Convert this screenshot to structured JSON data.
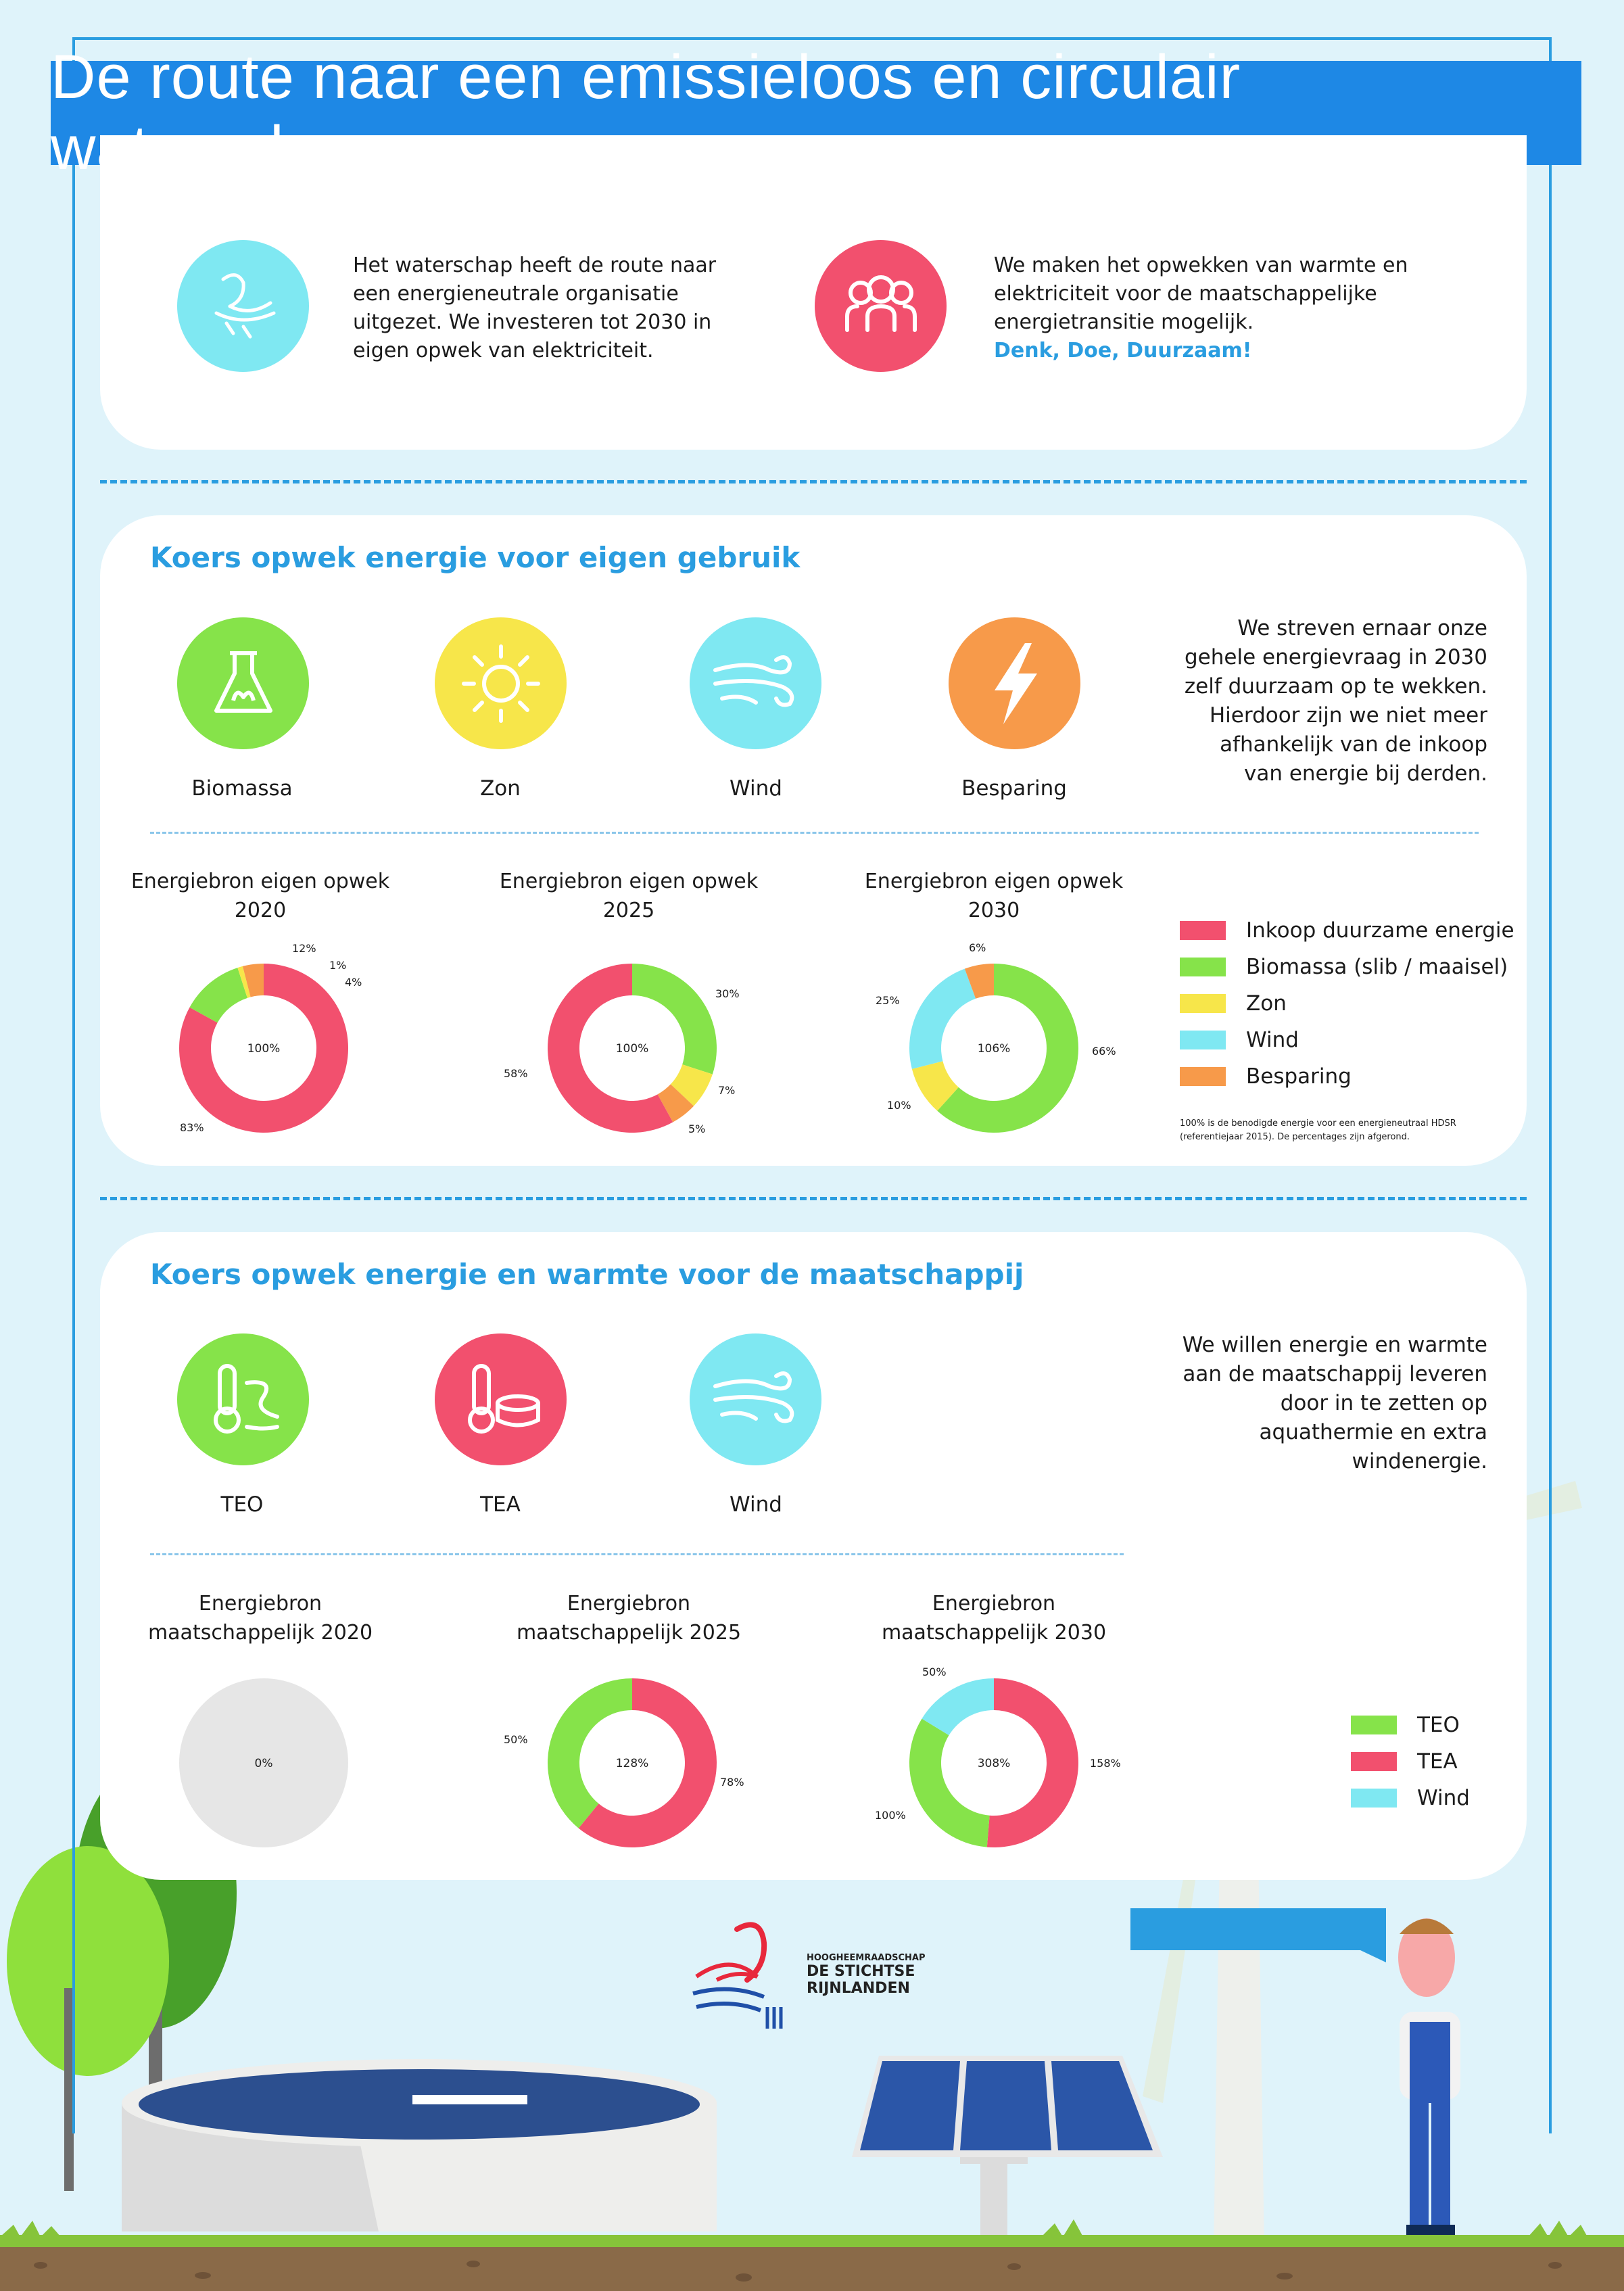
{
  "title": "De route naar een emissieloos en circulair waterschap",
  "intro": {
    "left_text": "Het waterschap heeft de route naar een energieneutrale organisatie uitgezet. We investeren tot 2030 in eigen opwek van elektriciteit.",
    "right_text": "We maken het opwekken van warmte en elektriciteit voor de maatschappelijke energietransitie mogelijk.",
    "right_slogan": "Denk, Doe, Duurzaam!"
  },
  "section1": {
    "heading": "Koers opwek energie voor eigen gebruik",
    "icons": [
      "Biomassa",
      "Zon",
      "Wind",
      "Besparing"
    ],
    "description": "We streven ernaar onze gehele energievraag in 2030 zelf duurzaam op te wekken. Hierdoor zijn we niet meer afhankelijk van de inkoop van energie bij derden.",
    "legend": [
      "Inkoop duurzame energie",
      "Biomassa (slib / maaisel)",
      "Zon",
      "Wind",
      "Besparing"
    ],
    "footnote": "100% is de benodigde energie voor een energieneutraal HDSR (referentiejaar 2015). De percentages zijn afgerond."
  },
  "section2": {
    "heading": "Koers opwek energie en warmte voor de maatschappij",
    "icons": [
      "TEO",
      "TEA",
      "Wind"
    ],
    "description": "We willen energie en warmte aan de maatschappij leveren door in te zetten op aquathermie en extra windenergie.",
    "legend": [
      "TEO",
      "TEA",
      "Wind"
    ]
  },
  "logo_text": [
    "HOOGHEEMRAADSCHAP",
    "DE STICHTSE",
    "RIJNLANDEN"
  ],
  "colors": {
    "inkoop": "#f2506e",
    "biomassa": "#86e34a",
    "zon": "#f7e64a",
    "wind": "#7fe8f2",
    "besparing": "#f79a4a",
    "teo": "#86e34a",
    "tea": "#f2506e",
    "empty": "#e6e6e6"
  },
  "chart_data": [
    {
      "type": "pie",
      "title": "Energiebron eigen opwek 2020",
      "center_label": "100%",
      "slices": [
        {
          "name": "Inkoop duurzame energie",
          "value": 83,
          "label": "83%"
        },
        {
          "name": "Biomassa (slib / maaisel)",
          "value": 12,
          "label": "12%"
        },
        {
          "name": "Zon",
          "value": 1,
          "label": "1%"
        },
        {
          "name": "Besparing",
          "value": 4,
          "label": "4%"
        }
      ]
    },
    {
      "type": "pie",
      "title": "Energiebron eigen opwek 2025",
      "center_label": "100%",
      "slices": [
        {
          "name": "Biomassa (slib / maaisel)",
          "value": 30,
          "label": "30%"
        },
        {
          "name": "Zon",
          "value": 7,
          "label": "7%"
        },
        {
          "name": "Besparing",
          "value": 5,
          "label": "5%"
        },
        {
          "name": "Inkoop duurzame energie",
          "value": 58,
          "label": "58%"
        }
      ]
    },
    {
      "type": "pie",
      "title": "Energiebron eigen opwek 2030",
      "center_label": "106%",
      "slices": [
        {
          "name": "Biomassa (slib / maaisel)",
          "value": 66,
          "label": "66%"
        },
        {
          "name": "Zon",
          "value": 10,
          "label": "10%"
        },
        {
          "name": "Wind",
          "value": 25,
          "label": "25%"
        },
        {
          "name": "Besparing",
          "value": 6,
          "label": "6%"
        }
      ]
    },
    {
      "type": "pie",
      "title": "Energiebron maatschappelijk 2020",
      "center_label": "0%",
      "slices": []
    },
    {
      "type": "pie",
      "title": "Energiebron maatschappelijk 2025",
      "center_label": "128%",
      "slices": [
        {
          "name": "TEA",
          "value": 78,
          "label": "78%"
        },
        {
          "name": "TEO",
          "value": 50,
          "label": "50%"
        }
      ]
    },
    {
      "type": "pie",
      "title": "Energiebron maatschappelijk 2030",
      "center_label": "308%",
      "slices": [
        {
          "name": "TEA",
          "value": 158,
          "label": "158%"
        },
        {
          "name": "TEO",
          "value": 100,
          "label": "100%"
        },
        {
          "name": "Wind",
          "value": 50,
          "label": "50%"
        }
      ]
    }
  ]
}
